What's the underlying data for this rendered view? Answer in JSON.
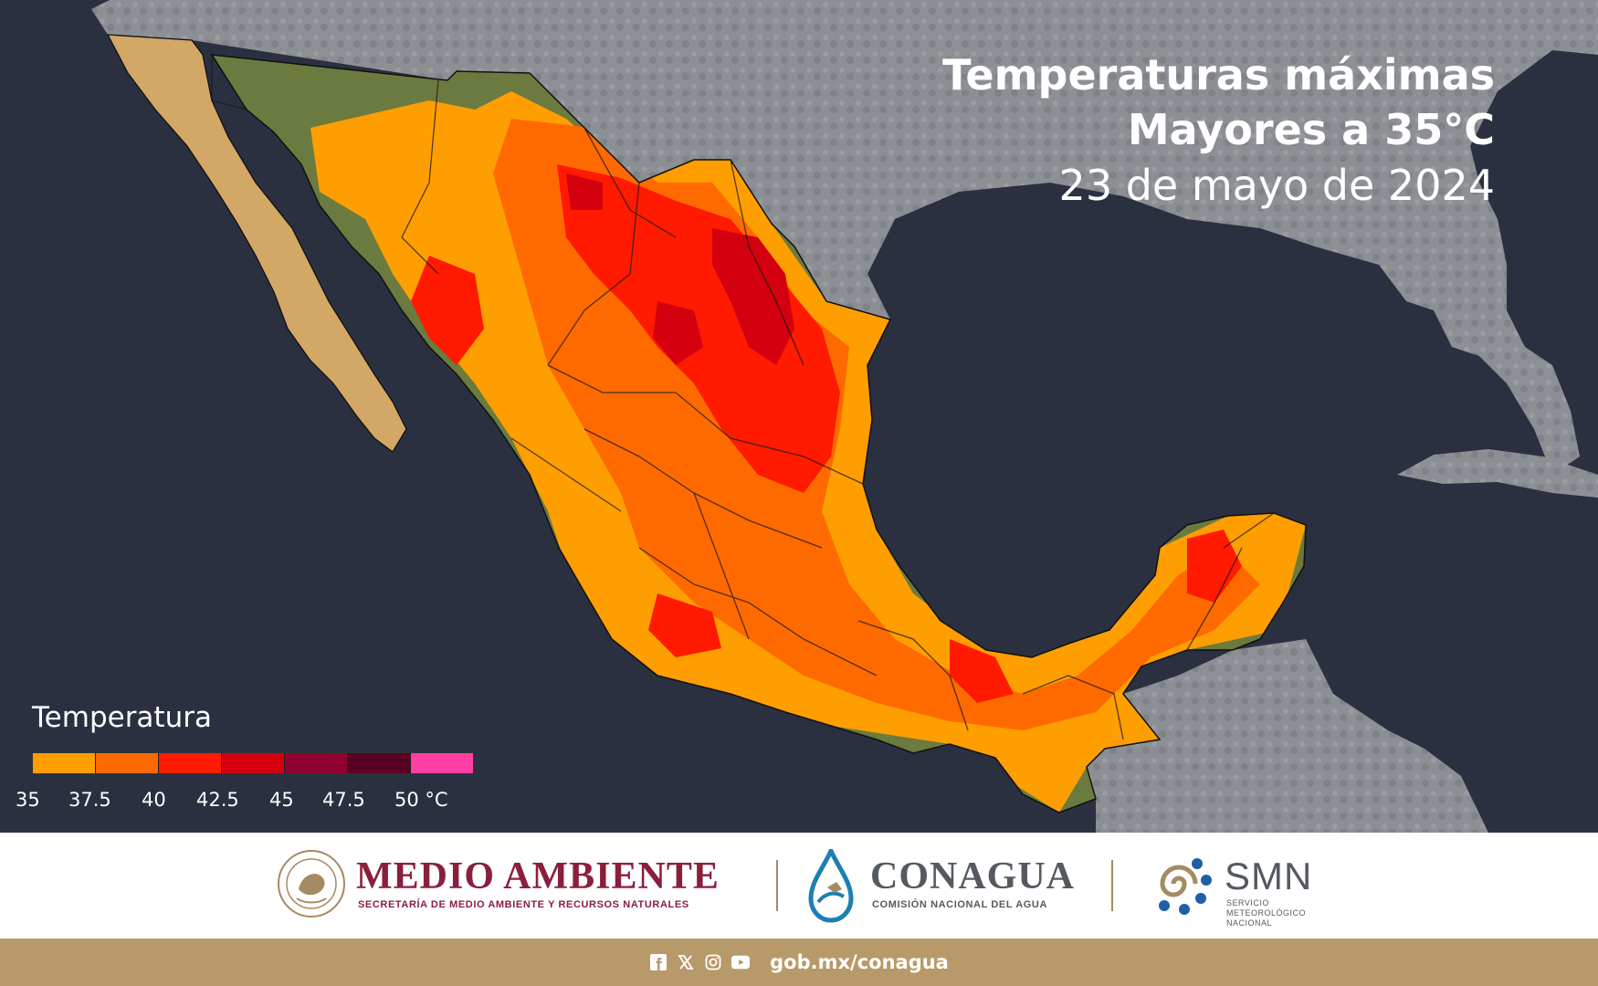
{
  "title": {
    "line1": "Temperaturas máximas",
    "line2": "Mayores a 35°C",
    "date": "23 de mayo de 2024"
  },
  "legend": {
    "title": "Temperatura",
    "swatches": [
      "#ff9e00",
      "#ff6a00",
      "#ff1a00",
      "#d40010",
      "#900030",
      "#5a0024",
      "#ff3fa4"
    ],
    "ticks": [
      "35",
      "37.5",
      "40",
      "42.5",
      "45",
      "47.5",
      "50 °C"
    ]
  },
  "colors": {
    "ocean": "#2a3040",
    "land_gray": "#8c8f93",
    "land_mexico_desert": "#d3a766",
    "land_mexico_green": "#6b7a3e",
    "band_35": "#ff9e00",
    "band_37_5": "#ff6a00",
    "band_40": "#ff1a00",
    "band_42_5": "#d40010",
    "medio_ambiente": "#8a1f3c",
    "conagua": "#555a60",
    "footer_bar": "#b89a6a"
  },
  "logos": {
    "medio_ambiente": {
      "name": "MEDIO AMBIENTE",
      "subtitle": "SECRETARÍA DE MEDIO AMBIENTE Y RECURSOS NATURALES"
    },
    "conagua": {
      "name": "CONAGUA",
      "subtitle": "COMISIÓN NACIONAL DEL AGUA"
    },
    "smn": {
      "name": "SMN",
      "subtitle": "Servicio Meteorológico Nacional"
    }
  },
  "footer": {
    "icons": [
      "facebook-icon",
      "x-icon",
      "instagram-icon",
      "youtube-icon"
    ],
    "url": "gob.mx/conagua"
  }
}
